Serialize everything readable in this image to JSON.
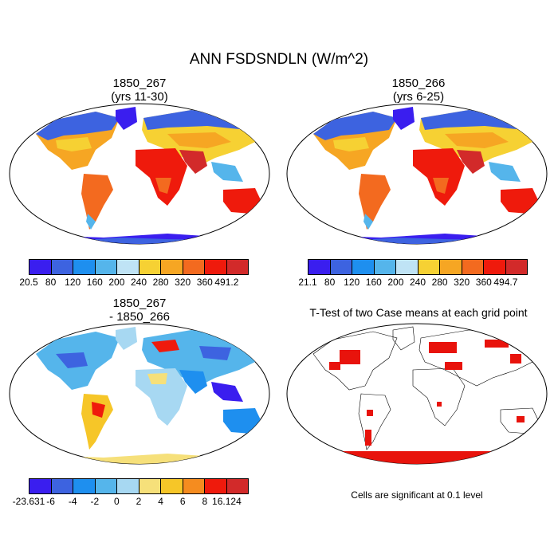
{
  "title": "ANN FSDSNDLN (W/m^2)",
  "panels": [
    {
      "title_line1": "1850_267",
      "title_line2": "(yrs 11-30)",
      "colorbar": {
        "labels": [
          "20.5",
          "80",
          "120",
          "160",
          "200",
          "240",
          "280",
          "320",
          "360",
          "491.2"
        ],
        "colors": [
          "#3a1eef",
          "#3d63e0",
          "#1e8fef",
          "#55b5eb",
          "#bfe3f5",
          "#f6d133",
          "#f6a623",
          "#f36a1f",
          "#ef1a0c",
          "#d22a2a"
        ]
      }
    },
    {
      "title_line1": "1850_266",
      "title_line2": "(yrs 6-25)",
      "colorbar": {
        "labels": [
          "21.1",
          "80",
          "120",
          "160",
          "200",
          "240",
          "280",
          "320",
          "360",
          "494.7"
        ],
        "colors": [
          "#3a1eef",
          "#3d63e0",
          "#1e8fef",
          "#55b5eb",
          "#bfe3f5",
          "#f6d133",
          "#f6a623",
          "#f36a1f",
          "#ef1a0c",
          "#d22a2a"
        ]
      }
    },
    {
      "title_line1": "1850_267",
      "title_line2": "- 1850_266",
      "colorbar": {
        "labels": [
          "-23.631",
          "-6",
          "-4",
          "-2",
          "0",
          "2",
          "4",
          "6",
          "8",
          "16.124"
        ],
        "colors": [
          "#3a1eef",
          "#3d63e0",
          "#1e8fef",
          "#55b5eb",
          "#a7d8f2",
          "#f6e07a",
          "#f6c628",
          "#f58c1f",
          "#ef1a0c",
          "#d22a2a"
        ]
      }
    },
    {
      "title_line1": "T-Test of two Case means at each grid point",
      "note": "Cells are significant at 0.1 level",
      "significance_color": "#e8130c"
    }
  ]
}
